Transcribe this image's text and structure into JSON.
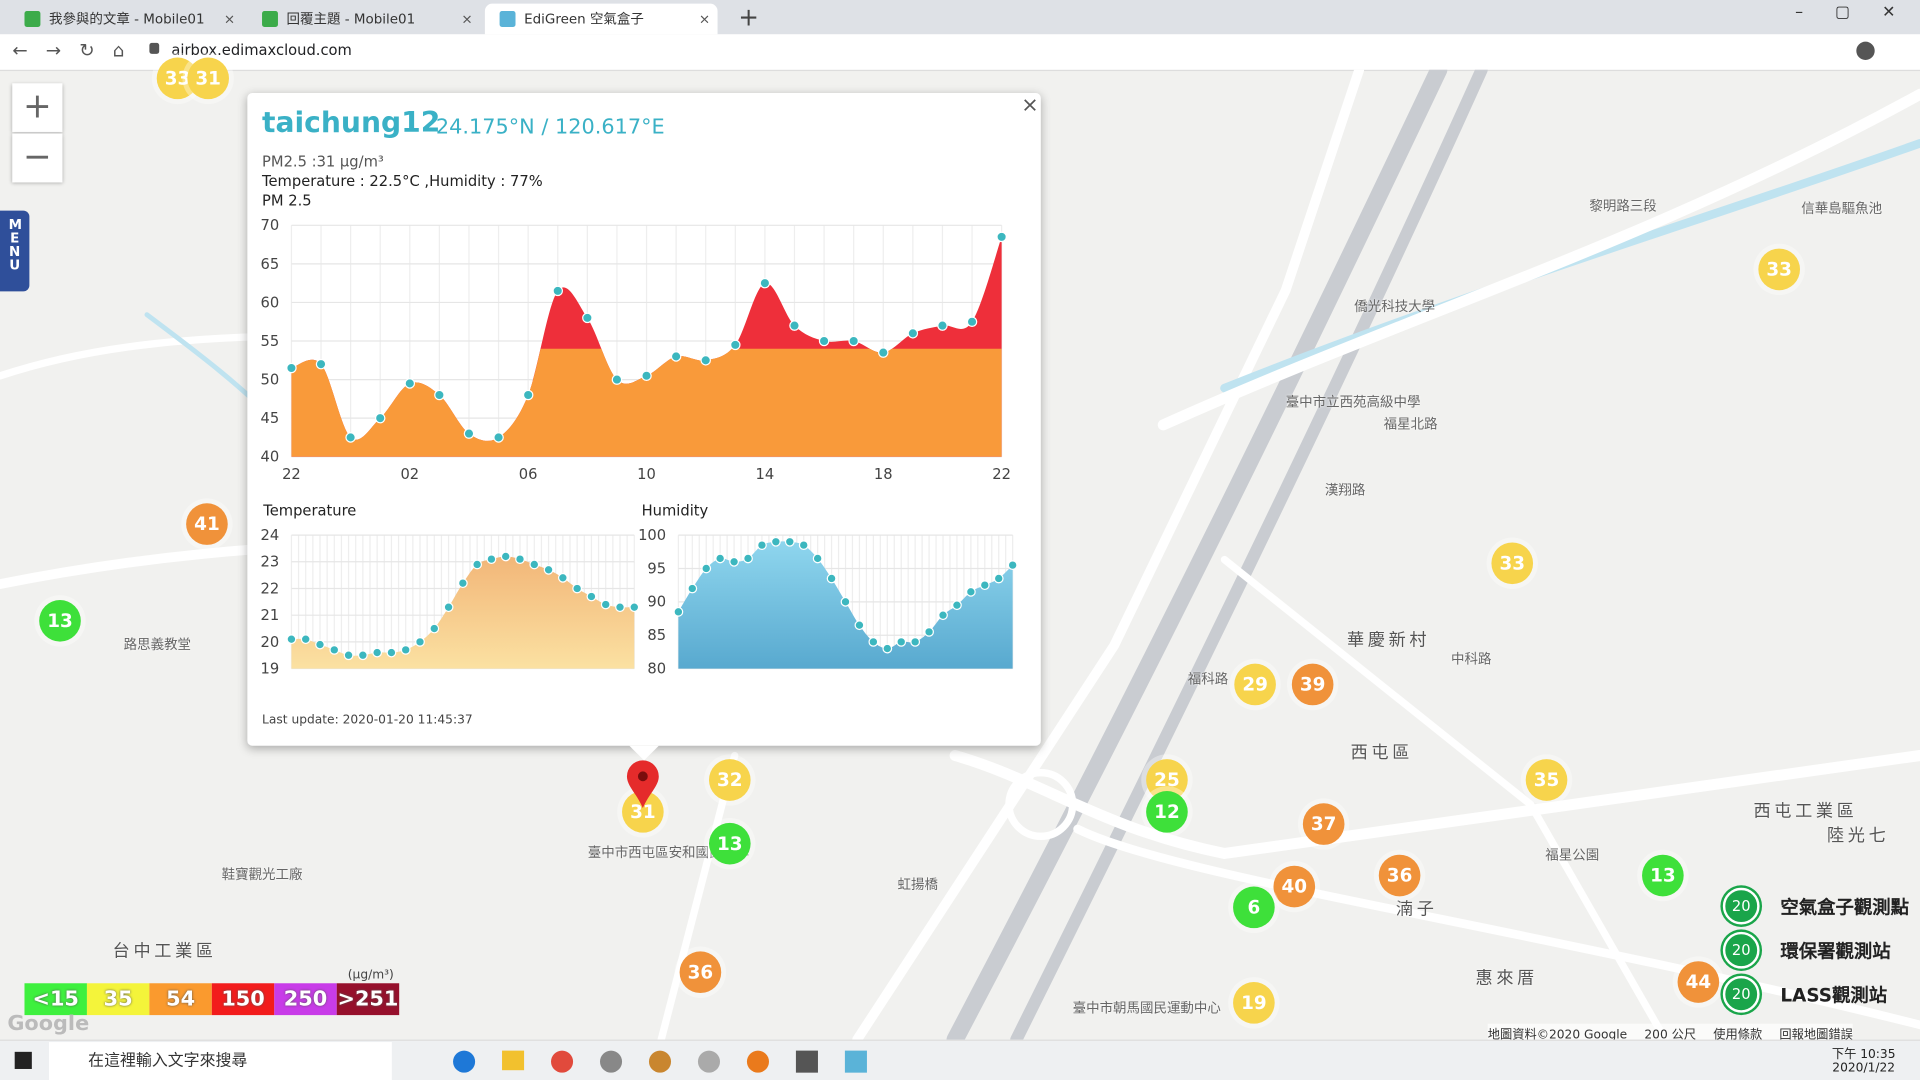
{
  "browser": {
    "tabs": [
      "我參與的文章 - Mobile01",
      "回覆主題 - Mobile01",
      "EdiGreen 空氣盒子"
    ],
    "new_tab": "+",
    "url": "airbox.edimaxcloud.com"
  },
  "map": {
    "zoom_in": "+",
    "zoom_out": "−",
    "menu": "MENU",
    "markers": [
      {
        "label": "33",
        "color": "#f7d44c"
      },
      {
        "label": "31",
        "color": "#f7d44c"
      },
      {
        "label": "41",
        "color": "#f0923a"
      },
      {
        "label": "13",
        "color": "#3ee03a"
      },
      {
        "label": "33",
        "color": "#f7d44c"
      },
      {
        "label": "33",
        "color": "#f7d44c"
      },
      {
        "label": "29",
        "color": "#f7d44c"
      },
      {
        "label": "39",
        "color": "#f0923a"
      },
      {
        "label": "25",
        "color": "#f7d44c"
      },
      {
        "label": "12",
        "color": "#3ee03a"
      },
      {
        "label": "37",
        "color": "#f0923a"
      },
      {
        "label": "35",
        "color": "#f7d44c"
      },
      {
        "label": "36",
        "color": "#f0923a"
      },
      {
        "label": "40",
        "color": "#f0923a"
      },
      {
        "label": "6",
        "color": "#3ee03a"
      },
      {
        "label": "13",
        "color": "#3ee03a"
      },
      {
        "label": "44",
        "color": "#f0923a"
      },
      {
        "label": "19",
        "color": "#f7d44c"
      },
      {
        "label": "32",
        "color": "#f7d44c"
      },
      {
        "label": "13",
        "color": "#3ee03a"
      },
      {
        "label": "31",
        "color": "#f7d44c"
      },
      {
        "label": "36",
        "color": "#f0923a"
      }
    ],
    "places": [
      "華慶新村",
      "西屯區",
      "台中工業區",
      "西屯工業區",
      "陸光七",
      "湳子",
      "惠來厝",
      "僑光科技大學",
      "臺中市立西苑高級中學",
      "福星北路",
      "路思義教堂",
      "鞋寶觀光工廠",
      "臺中市西屯區安和國民中學",
      "福星公園",
      "臺中市朝馬國民運動中心",
      "黎明路三段",
      "漢翔路",
      "福科路",
      "中科路",
      "信華島驅魚池",
      "虹揚橋"
    ],
    "footer": [
      "地圖資料©2020 Google",
      "200 公尺",
      "使用條款",
      "回報地圖錯誤"
    ],
    "google": "Google"
  },
  "popup": {
    "title": "taichung12",
    "coords": "24.175°N / 120.617°E",
    "close": "×",
    "pm25": "PM2.5 :31 μg/m³",
    "temp_humidity": "Temperature : 22.5°C ,Humidity : 77%",
    "pm_chart": {
      "type": "area",
      "title": "PM 2.5",
      "categories": [
        "22",
        null,
        null,
        null,
        "02",
        null,
        null,
        null,
        "06",
        null,
        null,
        null,
        "10",
        null,
        null,
        null,
        "14",
        null,
        null,
        null,
        "18",
        null,
        null,
        null,
        "22"
      ],
      "values": [
        51.5,
        52,
        42.5,
        45,
        49.5,
        48,
        43,
        42.5,
        48,
        61.5,
        58,
        50,
        50.5,
        53,
        52.5,
        54.5,
        62.5,
        57,
        55,
        55,
        53.5,
        56,
        57,
        57.5,
        68.5
      ],
      "ylim": [
        40,
        70
      ],
      "yticks": [
        40,
        45,
        50,
        55,
        60,
        65,
        70
      ],
      "colors": {
        "low": "#f99a3a",
        "high": "#ee2f3a",
        "point": "#3cb7bf"
      }
    },
    "temp_chart": {
      "type": "area",
      "title": "Temperature",
      "values": [
        20.1,
        20.1,
        19.9,
        19.7,
        19.5,
        19.5,
        19.6,
        19.6,
        19.7,
        20.0,
        20.5,
        21.3,
        22.2,
        22.9,
        23.1,
        23.2,
        23.1,
        22.9,
        22.7,
        22.4,
        22.0,
        21.7,
        21.4,
        21.3,
        21.3
      ],
      "ylim": [
        19,
        24
      ],
      "yticks": [
        19,
        20,
        21,
        22,
        23,
        24
      ],
      "colors": {
        "top": "#f2b678",
        "bottom": "#fbe1a2",
        "point": "#3cb7bf"
      }
    },
    "humidity_chart": {
      "type": "area",
      "title": "Humidity",
      "values": [
        88.5,
        92,
        95,
        96.5,
        96,
        96.5,
        98.5,
        99,
        99,
        98.5,
        96.5,
        93.5,
        90,
        86.5,
        84,
        83,
        84,
        84,
        85.5,
        88,
        89.5,
        91.5,
        92.5,
        93.5,
        95.5
      ],
      "ylim": [
        80,
        100
      ],
      "yticks": [
        80,
        85,
        90,
        95,
        100
      ],
      "colors": {
        "top": "#8fd6ee",
        "bottom": "#58a9cf",
        "point": "#3cb7bf"
      }
    },
    "last_update": "Last update: 2020-01-20 11:45:37"
  },
  "aq_legend": {
    "unit": "(μg/m³)",
    "items": [
      {
        "label": "<15",
        "color": "#3ef03e"
      },
      {
        "label": "35",
        "color": "#f4f43a"
      },
      {
        "label": "54",
        "color": "#fa9a2e"
      },
      {
        "label": "150",
        "color": "#f21c1c"
      },
      {
        "label": "250",
        "color": "#c83ce8"
      },
      {
        "label": ">251",
        "color": "#96102c"
      }
    ]
  },
  "station_legend": [
    {
      "badge": "20",
      "label": "空氣盒子觀測點"
    },
    {
      "badge": "20",
      "label": "環保署觀測站"
    },
    {
      "badge": "20",
      "label": "LASS觀測站"
    }
  ],
  "taskbar": {
    "search": "在這裡輸入文字來搜尋",
    "time": "下午 10:35",
    "date": "2020/1/22"
  }
}
